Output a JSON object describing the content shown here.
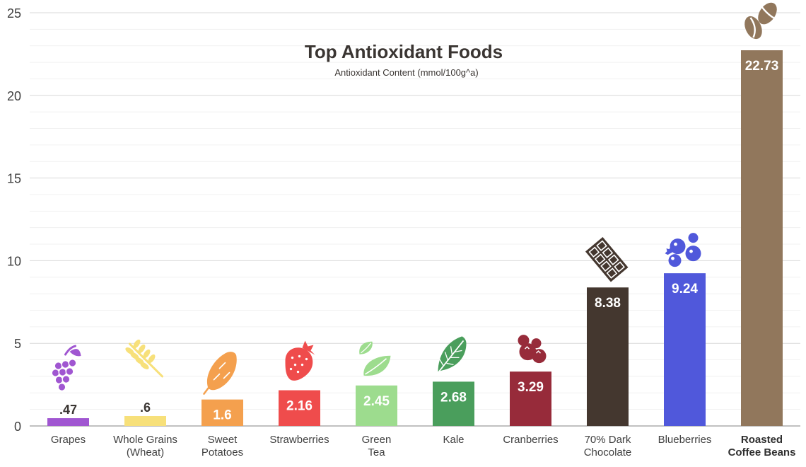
{
  "chart_data": {
    "type": "bar",
    "title": "Top Antioxidant Foods",
    "subtitle": "Antioxidant Content (mmol/100g^a)",
    "categories": [
      [
        "Grapes"
      ],
      [
        "Whole Grains",
        "(Wheat)"
      ],
      [
        "Sweet",
        "Potatoes"
      ],
      [
        "Strawberries"
      ],
      [
        "Green",
        "Tea"
      ],
      [
        "Kale"
      ],
      [
        "Cranberries"
      ],
      [
        "70% Dark",
        "Chocolate"
      ],
      [
        "Blueberries"
      ],
      [
        "Roasted",
        "Coffee Beans"
      ]
    ],
    "values": [
      0.47,
      0.6,
      1.6,
      2.16,
      2.45,
      2.68,
      3.29,
      8.38,
      9.24,
      22.73
    ],
    "data_labels": [
      ".47",
      ".6",
      "1.6",
      "2.16",
      "2.45",
      "2.68",
      "3.29",
      "8.38",
      "9.24",
      "22.73"
    ],
    "colors": [
      "#a056d1",
      "#f7e07a",
      "#f4a04e",
      "#ef4c4c",
      "#9ddc8e",
      "#4a9e5c",
      "#972b3a",
      "#44372f",
      "#5058db",
      "#91775c"
    ],
    "icons": [
      "grapes-icon",
      "wheat-icon",
      "sweet-potato-icon",
      "strawberry-icon",
      "tea-leaves-icon",
      "kale-leaf-icon",
      "cranberries-icon",
      "chocolate-bar-icon",
      "blueberries-icon",
      "coffee-bean-icon"
    ],
    "highlight_index": 9,
    "ylim": [
      0,
      25
    ],
    "yticks": [
      0,
      5,
      10,
      15,
      20,
      25
    ],
    "grid": true,
    "xlabel": "",
    "ylabel": ""
  }
}
